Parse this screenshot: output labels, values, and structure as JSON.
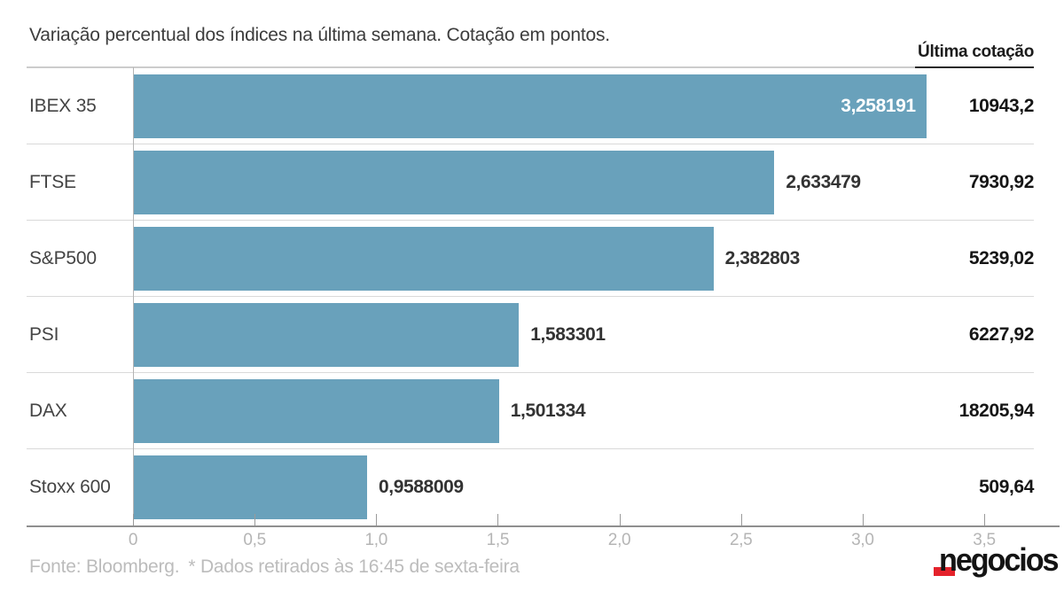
{
  "page": {
    "title": "Variação percentual dos índices na última semana. Cotação em pontos.",
    "last_quote_header": "Última cotação",
    "footer": {
      "source": "Fonte: Bloomberg.",
      "note": "* Dados retirados às 16:45 de sexta-feira"
    },
    "logo_text": "negocios"
  },
  "colors": {
    "bar": "#69a1bb",
    "accent_red": "#e4222b",
    "title_text": "#3d3d3d",
    "index_label_text": "#444444",
    "value_label_text": "#333333",
    "value_label_inside_text": "#ffffff",
    "quote_text": "#161616",
    "tick_text": "#b5b5b5",
    "footer_text": "#bcbcbc",
    "separator": "#d9d9d9",
    "axis_line": "#8f8f8f"
  },
  "chart_data": {
    "type": "bar",
    "orientation": "horizontal",
    "title": "Variação percentual dos índices na última semana. Cotação em pontos.",
    "categories": [
      "IBEX 35",
      "FTSE",
      "S&P500",
      "PSI",
      "DAX",
      "Stoxx 600"
    ],
    "values": [
      3.258191,
      2.633479,
      2.382803,
      1.583301,
      1.501334,
      0.9588009
    ],
    "value_labels": [
      "3,258191",
      "2,633479",
      "2,382803",
      "1,583301",
      "1,501334",
      "0,9588009"
    ],
    "last_quotes_header": "Última cotação",
    "last_quotes": [
      "10943,2",
      "7930,92",
      "5239,02",
      "6227,92",
      "18205,94",
      "509,64"
    ],
    "x_ticks": [
      {
        "value": 0,
        "label": "0"
      },
      {
        "value": 0.5,
        "label": "0,5"
      },
      {
        "value": 1.0,
        "label": "1,0"
      },
      {
        "value": 1.5,
        "label": "1,5"
      },
      {
        "value": 2.0,
        "label": "2,0"
      },
      {
        "value": 2.5,
        "label": "2,5"
      },
      {
        "value": 3.0,
        "label": "3,0"
      },
      {
        "value": 3.5,
        "label": "3,5"
      }
    ],
    "xlim": [
      0,
      3.5
    ],
    "xlabel": "",
    "ylabel": "",
    "legend": "none",
    "grid": "none",
    "source_note": "Fonte: Bloomberg.  * Dados retirados às 16:45 de sexta-feira"
  }
}
